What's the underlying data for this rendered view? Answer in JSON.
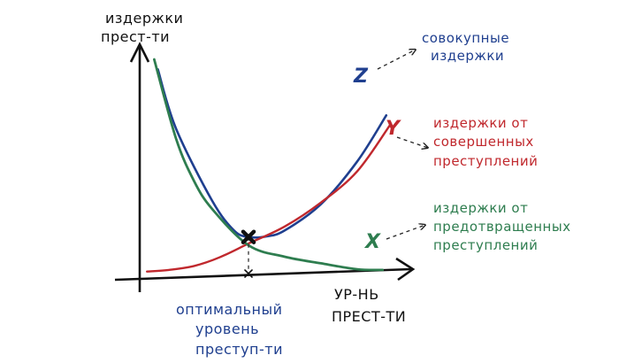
{
  "chart_data": {
    "type": "line",
    "title": "",
    "ylabel_lines": [
      "издержки",
      "прест-ти"
    ],
    "xlabel_lines": [
      "УР-НЬ",
      "ПРЕСТ-ТИ"
    ],
    "optimum_label_lines": [
      "оптимальный",
      "уровень",
      "преступ-ти"
    ],
    "series": [
      {
        "name": "Z",
        "label_lines": [
          "совокупные",
          "издержки"
        ],
        "color": "#1f3f8f",
        "points": [
          [
            0.5,
            6.4
          ],
          [
            1.0,
            4.6
          ],
          [
            2.0,
            2.4
          ],
          [
            2.6,
            1.5
          ],
          [
            3.0,
            1.3
          ],
          [
            3.5,
            1.32
          ],
          [
            4.0,
            1.5
          ],
          [
            5.0,
            2.3
          ],
          [
            6.0,
            3.6
          ],
          [
            6.8,
            5.0
          ]
        ]
      },
      {
        "name": "Y",
        "label_lines": [
          "издержки от",
          "совершенных",
          "преступлений"
        ],
        "color": "#c0282d",
        "points": [
          [
            0.2,
            0.25
          ],
          [
            0.8,
            0.3
          ],
          [
            1.5,
            0.42
          ],
          [
            2.2,
            0.68
          ],
          [
            3.0,
            1.1
          ],
          [
            4.0,
            1.62
          ],
          [
            5.0,
            2.35
          ],
          [
            6.0,
            3.3
          ],
          [
            6.9,
            4.7
          ]
        ]
      },
      {
        "name": "X",
        "label_lines": [
          "издержки от",
          "предотвращенных",
          "преступлений"
        ],
        "color": "#2e7d4f",
        "points": [
          [
            0.4,
            6.7
          ],
          [
            1.0,
            4.3
          ],
          [
            1.5,
            3.0
          ],
          [
            2.0,
            2.15
          ],
          [
            3.0,
            1.05
          ],
          [
            4.0,
            0.7
          ],
          [
            5.0,
            0.5
          ],
          [
            6.0,
            0.32
          ],
          [
            6.7,
            0.3
          ]
        ]
      }
    ],
    "optimum": {
      "x": 3.0,
      "y": 1.3
    },
    "xlim": [
      0,
      7
    ],
    "ylim": [
      0,
      7
    ],
    "grid": false,
    "legend": "labels at right with dashed arrows"
  }
}
